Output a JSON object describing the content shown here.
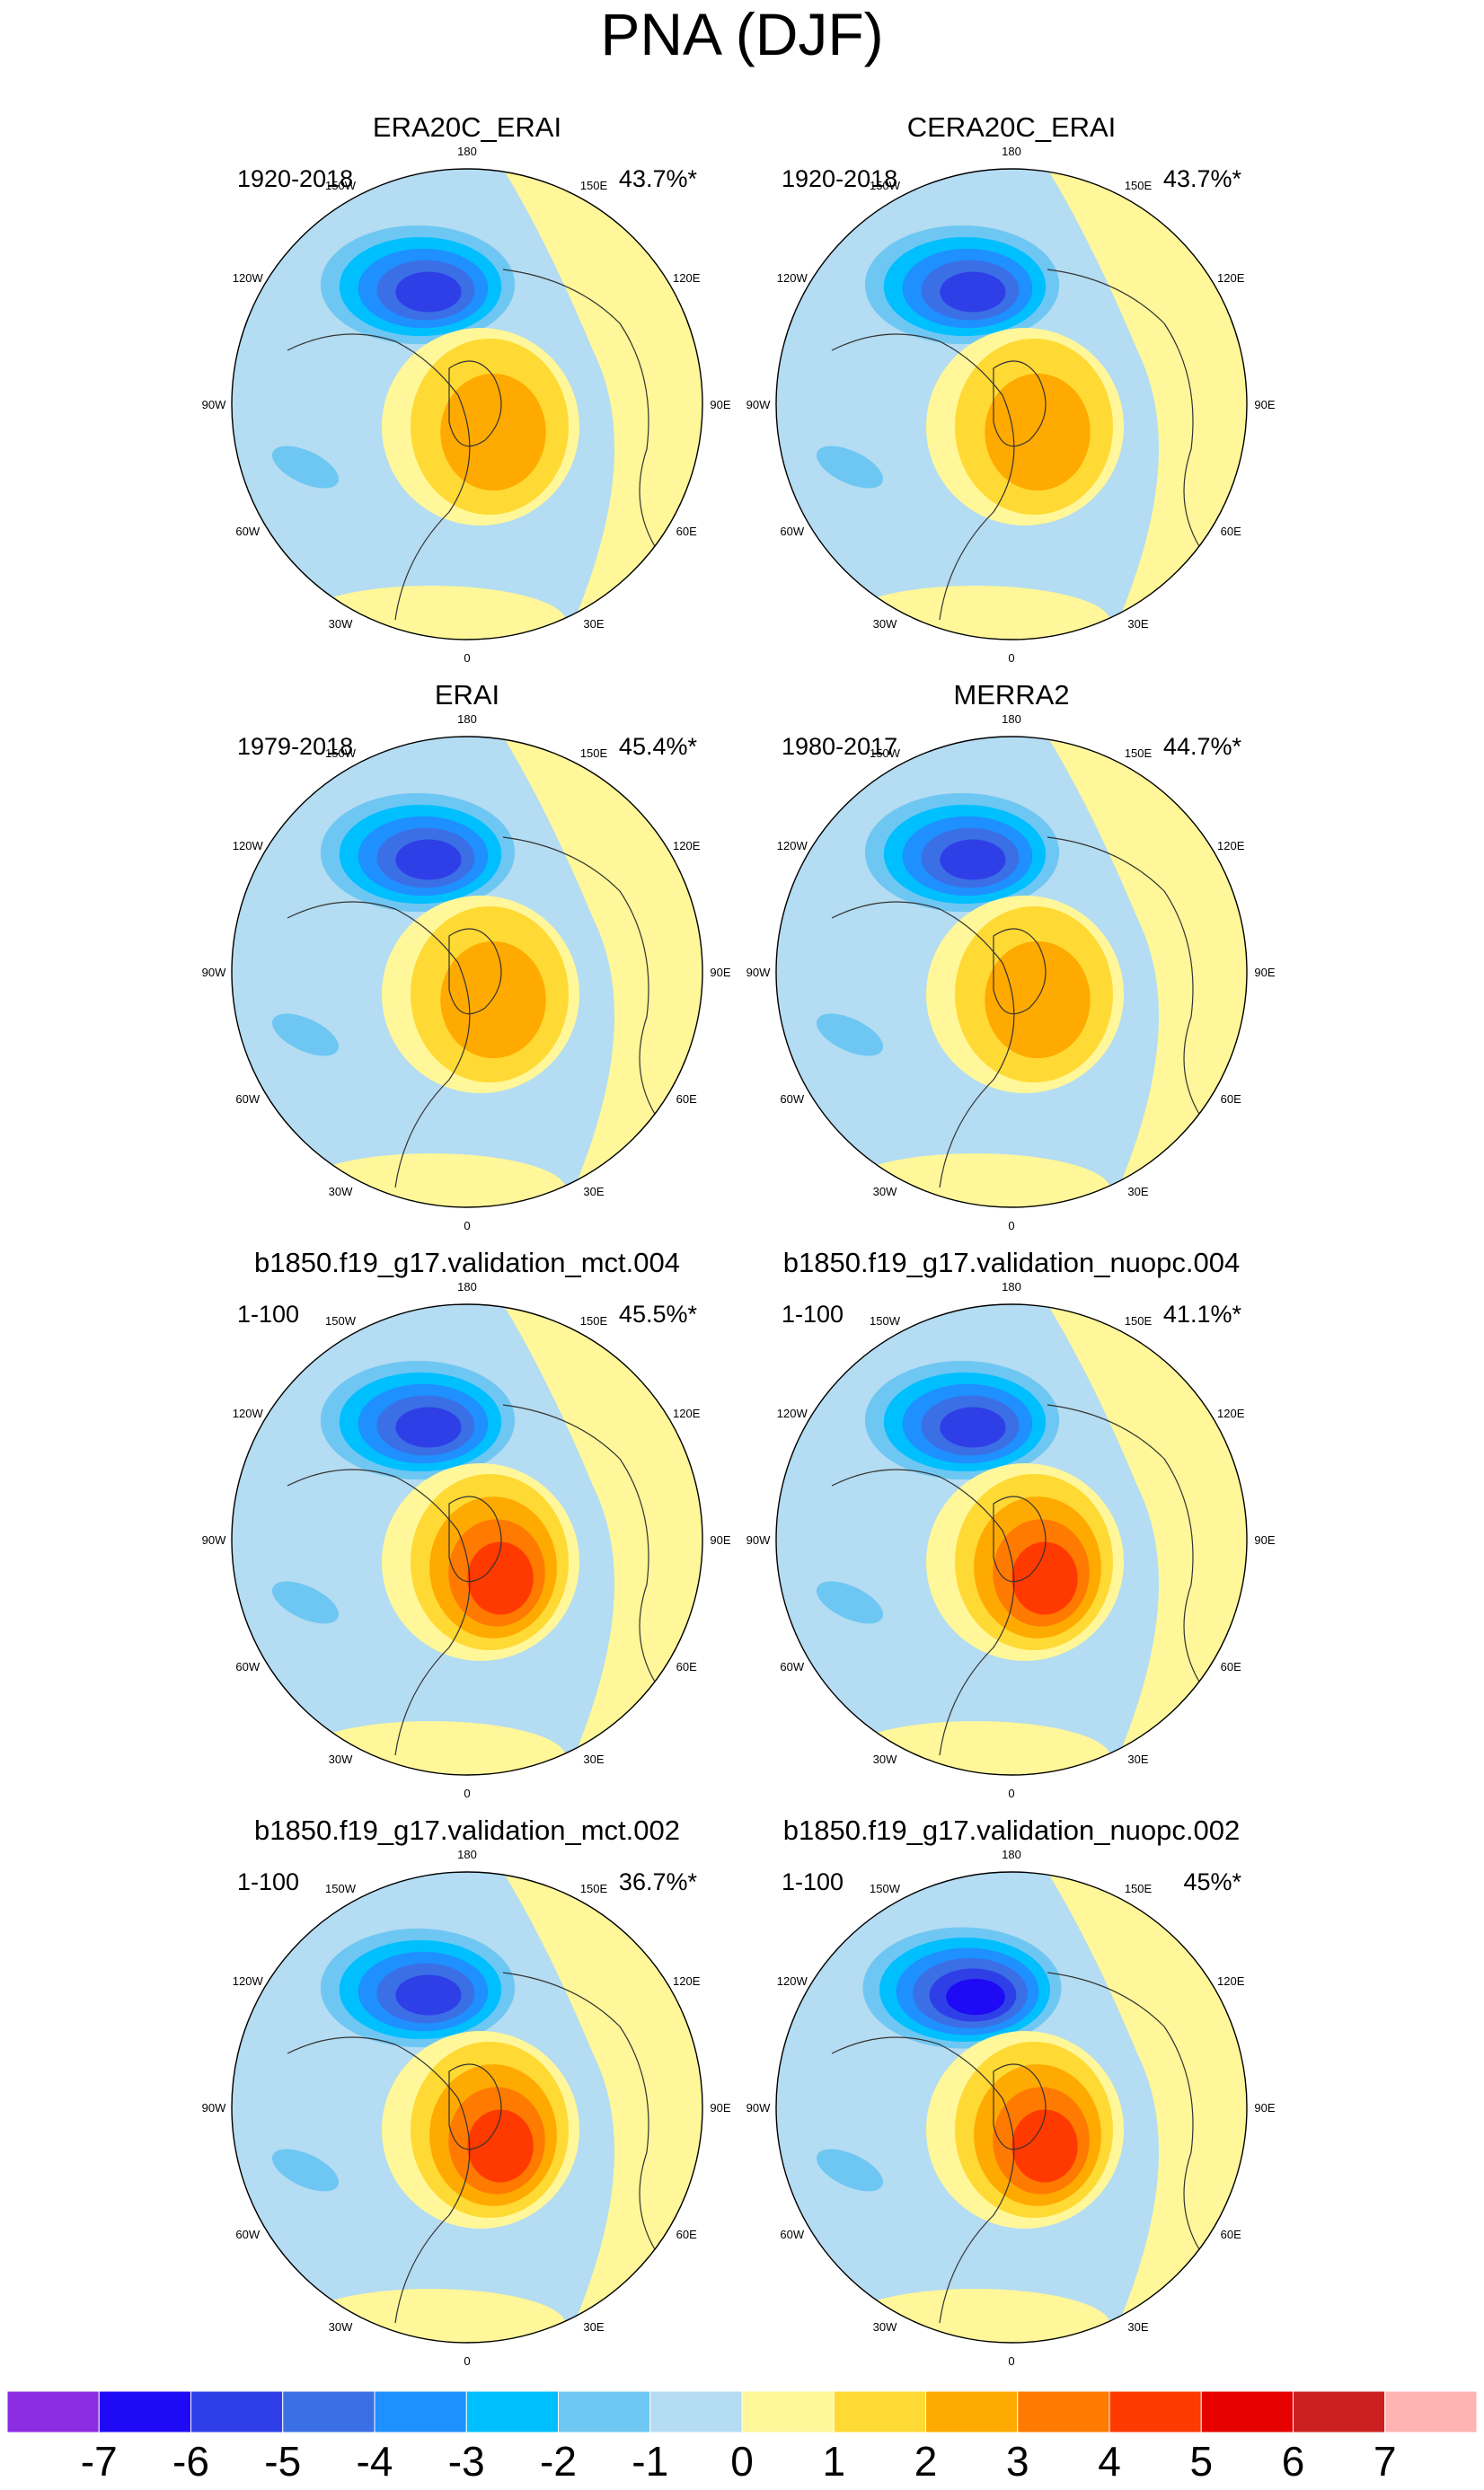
{
  "page": {
    "title": "PNA (DJF)"
  },
  "chart_data": {
    "type": "polar-stereographic contour maps (8 panels)",
    "title": "PNA (DJF)",
    "units_note": "",
    "longitude_labels": [
      "180",
      "150E",
      "120E",
      "90E",
      "60E",
      "30E",
      "0",
      "30W",
      "60W",
      "90W",
      "120W",
      "150W"
    ],
    "colorbar": {
      "tick_labels": [
        "-7",
        "-6",
        "-5",
        "-4",
        "-3",
        "-2",
        "-1",
        "0",
        "1",
        "2",
        "3",
        "4",
        "5",
        "6",
        "7"
      ],
      "colors": [
        "#8B2BE2",
        "#1E0AF5",
        "#2F3FE8",
        "#3B6FE6",
        "#1E90FF",
        "#00BFFF",
        "#6EC7F2",
        "#B4DCF2",
        "#FFF799",
        "#FFD934",
        "#FFAA00",
        "#FF7A00",
        "#FF3A00",
        "#E60000",
        "#CC1F1F",
        "#FFB3B3"
      ]
    },
    "panels": [
      {
        "name": "ERA20C_ERAI",
        "period": "1920-2018",
        "variance": "43.7%*",
        "pattern": {
          "low_min": -6,
          "high_max": 2
        }
      },
      {
        "name": "CERA20C_ERAI",
        "period": "1920-2018",
        "variance": "43.7%*",
        "pattern": {
          "low_min": -6,
          "high_max": 2
        }
      },
      {
        "name": "ERAI",
        "period": "1979-2018",
        "variance": "45.4%*",
        "pattern": {
          "low_min": -6,
          "high_max": 2
        }
      },
      {
        "name": "MERRA2",
        "period": "1980-2017",
        "variance": "44.7%*",
        "pattern": {
          "low_min": -6,
          "high_max": 2
        }
      },
      {
        "name": "b1850.f19_g17.validation_mct.004",
        "period": "1-100",
        "variance": "45.5%*",
        "pattern": {
          "low_min": -6,
          "high_max": 4
        }
      },
      {
        "name": "b1850.f19_g17.validation_nuopc.004",
        "period": "1-100",
        "variance": "41.1%*",
        "pattern": {
          "low_min": -6,
          "high_max": 4
        }
      },
      {
        "name": "b1850.f19_g17.validation_mct.002",
        "period": "1-100",
        "variance": "36.7%*",
        "pattern": {
          "low_min": -6,
          "high_max": 4
        }
      },
      {
        "name": "b1850.f19_g17.validation_nuopc.002",
        "period": "1-100",
        "variance": "45%*",
        "pattern": {
          "low_min": -7,
          "high_max": 4
        }
      }
    ]
  }
}
